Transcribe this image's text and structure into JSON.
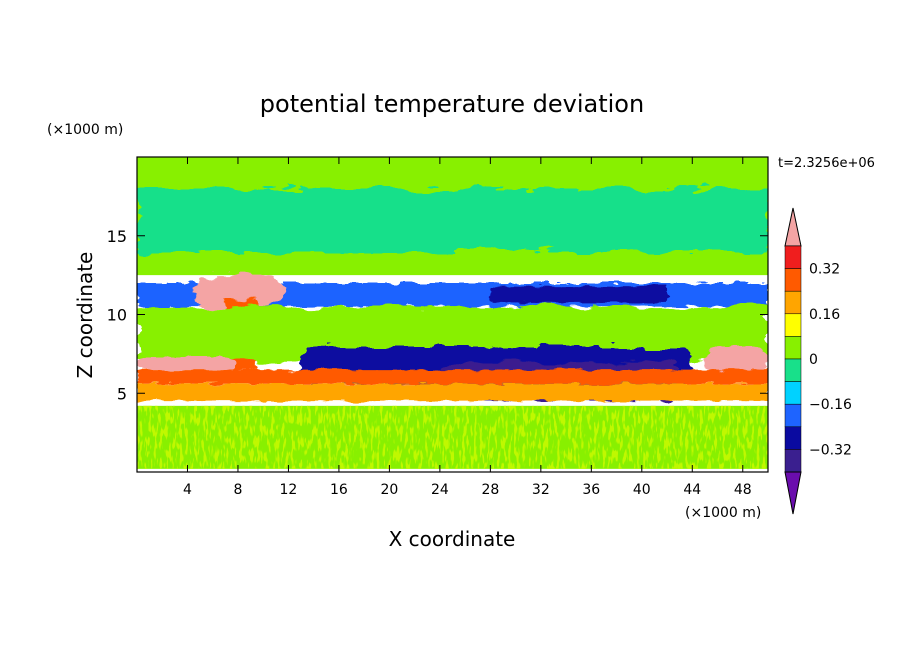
{
  "chart_data": {
    "type": "heatmap",
    "title": "potential temperature deviation",
    "xlabel": "X coordinate",
    "ylabel": "Z coordinate",
    "x_unit_label": "(×1000 m)",
    "y_unit_label": "(×1000 m)",
    "time_label": "t=2.3256e+06",
    "xlim": [
      0,
      50
    ],
    "ylim": [
      0,
      20
    ],
    "x_ticks": [
      4,
      8,
      12,
      16,
      20,
      24,
      28,
      32,
      36,
      40,
      44,
      48
    ],
    "y_ticks": [
      5,
      10,
      15
    ],
    "colorbar": {
      "levels": [
        -0.4,
        -0.32,
        -0.24,
        -0.16,
        -0.08,
        0,
        0.08,
        0.16,
        0.24,
        0.32,
        0.4
      ],
      "tick_labels": [
        "0.32",
        "0.16",
        "0",
        "−0.16",
        "−0.32"
      ],
      "tick_values": [
        0.32,
        0.16,
        0,
        -0.16,
        -0.32
      ],
      "colors": [
        "#6a0dad",
        "#3a1f8f",
        "#0a0aa0",
        "#1e64ff",
        "#00d2ff",
        "#18e08a",
        "#88f000",
        "#ffff00",
        "#ffa500",
        "#ff5a00",
        "#f01e1e",
        "#f4a4a4"
      ],
      "extend": "both"
    },
    "regions": [
      {
        "name": "upper-background",
        "x": [
          0,
          50
        ],
        "z": [
          12.5,
          20
        ],
        "value": 0.05
      },
      {
        "name": "upper-teal-bands",
        "x": [
          0,
          50
        ],
        "z": [
          14,
          18
        ],
        "value": -0.04
      },
      {
        "name": "blue-layer-11km",
        "x": [
          0,
          50
        ],
        "z": [
          10.5,
          12
        ],
        "value": -0.2
      },
      {
        "name": "deep-blue-core-11km",
        "x": [
          28,
          42
        ],
        "z": [
          10.8,
          11.8
        ],
        "value": -0.3
      },
      {
        "name": "anvil-plume",
        "x": [
          4.5,
          11.5
        ],
        "z": [
          10.5,
          12.5
        ],
        "value": 0.4
      },
      {
        "name": "convective-tower",
        "x": [
          7,
          9.5
        ],
        "z": [
          6.5,
          11
        ],
        "value": 0.3
      },
      {
        "name": "mid-layer",
        "x": [
          0,
          50
        ],
        "z": [
          7,
          10.5
        ],
        "value": 0.02
      },
      {
        "name": "cold-pool-mid",
        "x": [
          13,
          44
        ],
        "z": [
          5.5,
          8
        ],
        "value": -0.3
      },
      {
        "name": "cold-core-mid",
        "x": [
          24,
          43
        ],
        "z": [
          4.5,
          7
        ],
        "value": -0.38
      },
      {
        "name": "warm-patch-left",
        "x": [
          0,
          8
        ],
        "z": [
          6.5,
          7.3
        ],
        "value": 0.4
      },
      {
        "name": "warm-patch-right",
        "x": [
          45,
          50
        ],
        "z": [
          6.2,
          8
        ],
        "value": 0.4
      },
      {
        "name": "inversion-red",
        "x": [
          0,
          50
        ],
        "z": [
          5.6,
          6.5
        ],
        "value": 0.3
      },
      {
        "name": "inversion-orange",
        "x": [
          0,
          50
        ],
        "z": [
          4.5,
          5.6
        ],
        "value": 0.2
      },
      {
        "name": "boundary-layer",
        "x": [
          0,
          50
        ],
        "z": [
          0.2,
          4.2
        ],
        "value": 0.0
      }
    ]
  }
}
